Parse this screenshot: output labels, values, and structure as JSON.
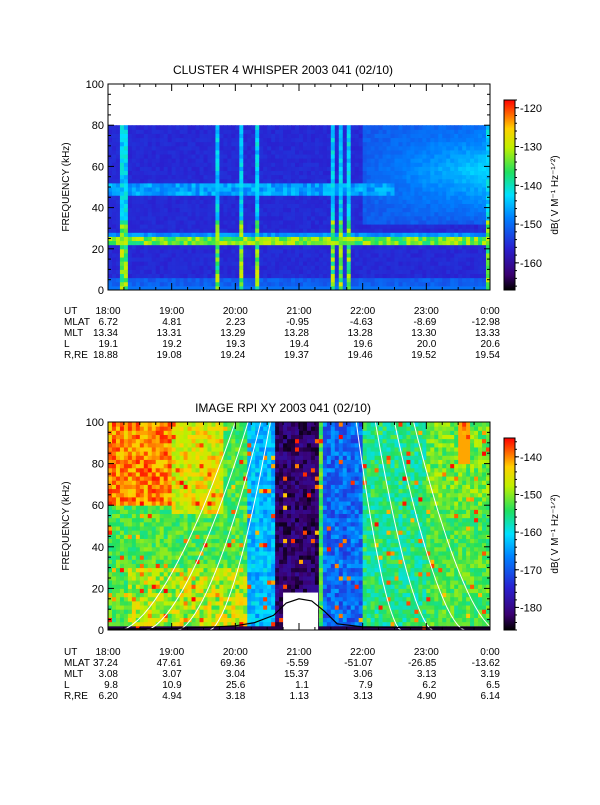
{
  "chart_data": [
    {
      "type": "heatmap",
      "title": "CLUSTER 4 WHISPER 2003 041 (02/10)",
      "ylabel": "FREQUENCY (kHz)",
      "ylim": [
        0,
        100
      ],
      "yticks": [
        "0",
        "20",
        "40",
        "60",
        "80",
        "100"
      ],
      "data_ylim": [
        0,
        80
      ],
      "colorbar": {
        "label": "dB( V M⁻¹ Hz⁻¹ᐟ²)",
        "range": [
          -167,
          -118
        ],
        "ticks": [
          "-120",
          "-130",
          "-140",
          "-150",
          "-160"
        ],
        "tick_values": [
          -120,
          -130,
          -140,
          -150,
          -160
        ]
      },
      "x_range_hours": [
        18,
        24
      ],
      "ephemeris": {
        "rows": [
          "UT",
          "MLAT",
          "MLT",
          "L",
          "R,RE"
        ],
        "columns": [
          [
            "18:00",
            "6.72",
            "13.34",
            "19.1",
            "18.88"
          ],
          [
            "19:00",
            "4.81",
            "13.31",
            "19.2",
            "19.08"
          ],
          [
            "20:00",
            "2.23",
            "13.29",
            "19.3",
            "19.24"
          ],
          [
            "21:00",
            "-0.95",
            "13.28",
            "19.4",
            "19.37"
          ],
          [
            "22:00",
            "-4.63",
            "13.28",
            "19.6",
            "19.46"
          ],
          [
            "23:00",
            "-8.69",
            "13.30",
            "20.0",
            "19.52"
          ],
          [
            "0:00",
            "-12.98",
            "13.33",
            "20.6",
            "19.54"
          ]
        ]
      },
      "features": {
        "emission_bands_khz": [
          {
            "time_range": [
              18.0,
              24.0
            ],
            "freq_start": 24,
            "freq_end": 25
          },
          {
            "time_range": [
              18.0,
              22.5
            ],
            "freq_start": 47,
            "freq_end": 51
          }
        ],
        "broadband_bursts_hours": [
          18.25,
          19.7,
          20.1,
          20.35,
          21.55,
          21.65,
          21.8,
          23.95
        ],
        "diffuse_enhancement": {
          "time_range": [
            22.0,
            24.0
          ],
          "freq_range": [
            35,
            80
          ]
        }
      }
    },
    {
      "type": "heatmap",
      "title": "IMAGE RPI XY 2003 041 (02/10)",
      "ylabel": "FREQUENCY (kHz)",
      "ylim": [
        0,
        100
      ],
      "yticks": [
        "0",
        "20",
        "40",
        "60",
        "80",
        "100"
      ],
      "colorbar": {
        "label": "dB( V M⁻¹ Hz⁻¹ᐟ²)",
        "range": [
          -186,
          -135
        ],
        "ticks": [
          "-140",
          "-150",
          "-160",
          "-170",
          "-180"
        ],
        "tick_values": [
          -140,
          -150,
          -160,
          -170,
          -180
        ]
      },
      "x_range_hours": [
        18,
        24
      ],
      "ephemeris": {
        "rows": [
          "UT",
          "MLAT",
          "MLT",
          "L",
          "R,RE"
        ],
        "columns": [
          [
            "18:00",
            "37.24",
            "3.08",
            "9.8",
            "6.20"
          ],
          [
            "19:00",
            "47.61",
            "3.07",
            "10.9",
            "4.94"
          ],
          [
            "20:00",
            "69.36",
            "3.04",
            "25.6",
            "3.18"
          ],
          [
            "21:00",
            "-5.59",
            "15.37",
            "1.1",
            "1.13"
          ],
          [
            "22:00",
            "-51.07",
            "3.06",
            "7.9",
            "3.13"
          ],
          [
            "23:00",
            "-26.85",
            "3.13",
            "6.2",
            "4.90"
          ],
          [
            "0:00",
            "-13.62",
            "3.19",
            "6.5",
            "6.14"
          ]
        ]
      },
      "features": {
        "data_gap": {
          "time_range": [
            20.75,
            21.3
          ],
          "freq_range": [
            0,
            18
          ]
        },
        "dark_column_hours": [
          20.65,
          21.2
        ],
        "plasma_frequency_curve": {
          "time_hours": [
            18.0,
            19.0,
            19.5,
            20.0,
            20.3,
            20.6,
            20.8,
            21.0,
            21.2,
            21.4,
            21.6,
            22.0,
            23.0,
            24.0
          ],
          "freq_khz": [
            0.5,
            0.7,
            1.2,
            2.0,
            3.5,
            7.0,
            13.0,
            15.0,
            14.0,
            9.0,
            3.0,
            1.5,
            1.0,
            1.0
          ]
        }
      }
    }
  ]
}
